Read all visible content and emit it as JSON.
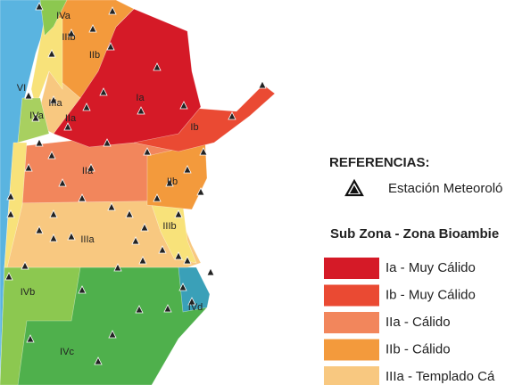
{
  "map_labels": [
    "IVa",
    "IIIb",
    "IIb",
    "VI",
    "Ia",
    "IIIa",
    "IVa",
    "IIa",
    "Ib",
    "IIa",
    "IIb",
    "IIIb",
    "IIIa",
    "IVb",
    "IVd",
    "IVc"
  ],
  "legend": {
    "title": "REFERENCIAS:",
    "station": "Estación Meteoroló",
    "zones_title": "Sub Zona - Zona Bioambie",
    "items": [
      {
        "label": "Ia - Muy Cálido",
        "color": "#d51a27"
      },
      {
        "label": "Ib - Muy Cálido",
        "color": "#ea4a33"
      },
      {
        "label": "IIa - Cálido",
        "color": "#f2865c"
      },
      {
        "label": "IIb - Cálido",
        "color": "#f39a3c"
      },
      {
        "label": "IIIa - Templado Cá",
        "color": "#f8c880"
      }
    ]
  }
}
